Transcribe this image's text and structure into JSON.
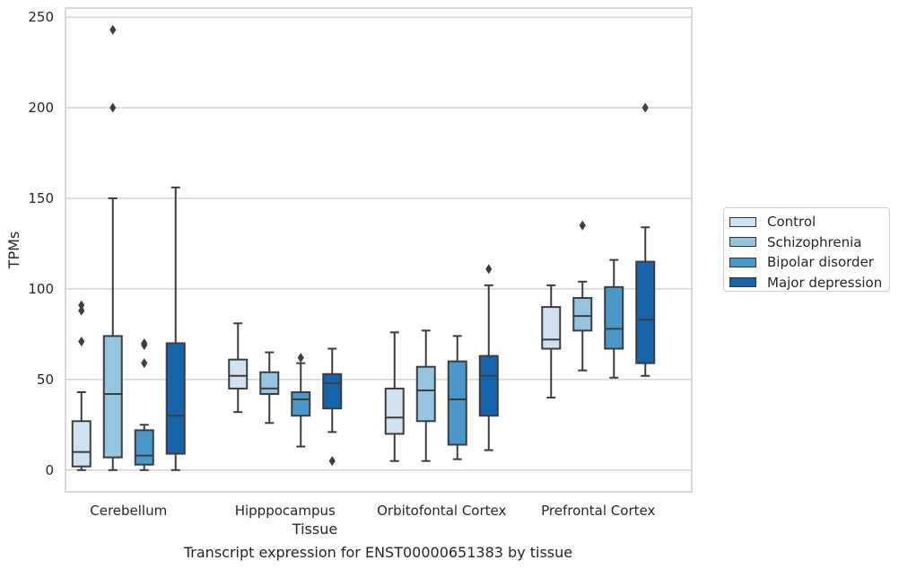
{
  "caption": "Transcript expression for ENST00000651383 by tissue",
  "chart_data": {
    "type": "boxplot",
    "xlabel": "Tissue",
    "ylabel": "TPMs",
    "ylim": [
      -12,
      255
    ],
    "yticks": [
      0,
      50,
      100,
      150,
      200,
      250
    ],
    "grid": true,
    "legend_position": "right",
    "categories": [
      "Cerebellum",
      "Hipppocampus",
      "Orbitofontal Cortex",
      "Prefrontal Cortex"
    ],
    "series": [
      {
        "name": "Control",
        "color": "#d0e1f2",
        "boxes": [
          {
            "whisker_low": 0,
            "q1": 2,
            "median": 10,
            "q3": 27,
            "whisker_high": 43,
            "outliers": [
              71,
              88,
              91
            ]
          },
          {
            "whisker_low": 32,
            "q1": 45,
            "median": 52,
            "q3": 61,
            "whisker_high": 81,
            "outliers": []
          },
          {
            "whisker_low": 5,
            "q1": 20,
            "median": 29,
            "q3": 45,
            "whisker_high": 76,
            "outliers": []
          },
          {
            "whisker_low": 40,
            "q1": 67,
            "median": 72,
            "q3": 90,
            "whisker_high": 102,
            "outliers": []
          }
        ]
      },
      {
        "name": "Schizophrenia",
        "color": "#94c4df",
        "boxes": [
          {
            "whisker_low": 0,
            "q1": 7,
            "median": 42,
            "q3": 74,
            "whisker_high": 150,
            "outliers": [
              200,
              243
            ]
          },
          {
            "whisker_low": 26,
            "q1": 42,
            "median": 45,
            "q3": 54,
            "whisker_high": 65,
            "outliers": []
          },
          {
            "whisker_low": 5,
            "q1": 27,
            "median": 44,
            "q3": 57,
            "whisker_high": 77,
            "outliers": []
          },
          {
            "whisker_low": 55,
            "q1": 77,
            "median": 85,
            "q3": 95,
            "whisker_high": 104,
            "outliers": [
              135
            ]
          }
        ]
      },
      {
        "name": "Bipolar disorder",
        "color": "#4a98c9",
        "boxes": [
          {
            "whisker_low": 0,
            "q1": 3,
            "median": 8,
            "q3": 22,
            "whisker_high": 25,
            "outliers": [
              59,
              69,
              70
            ]
          },
          {
            "whisker_low": 13,
            "q1": 30,
            "median": 39,
            "q3": 43,
            "whisker_high": 59,
            "outliers": [
              62
            ]
          },
          {
            "whisker_low": 6,
            "q1": 14,
            "median": 39,
            "q3": 60,
            "whisker_high": 74,
            "outliers": []
          },
          {
            "whisker_low": 51,
            "q1": 67,
            "median": 78,
            "q3": 101,
            "whisker_high": 116,
            "outliers": []
          }
        ]
      },
      {
        "name": "Major depression",
        "color": "#1764ab",
        "boxes": [
          {
            "whisker_low": 0,
            "q1": 9,
            "median": 30,
            "q3": 70,
            "whisker_high": 156,
            "outliers": []
          },
          {
            "whisker_low": 21,
            "q1": 34,
            "median": 48,
            "q3": 53,
            "whisker_high": 67,
            "outliers": [
              5
            ]
          },
          {
            "whisker_low": 11,
            "q1": 30,
            "median": 52,
            "q3": 63,
            "whisker_high": 102,
            "outliers": [
              111
            ]
          },
          {
            "whisker_low": 52,
            "q1": 59,
            "median": 83,
            "q3": 115,
            "whisker_high": 134,
            "outliers": [
              200
            ]
          }
        ]
      }
    ]
  }
}
